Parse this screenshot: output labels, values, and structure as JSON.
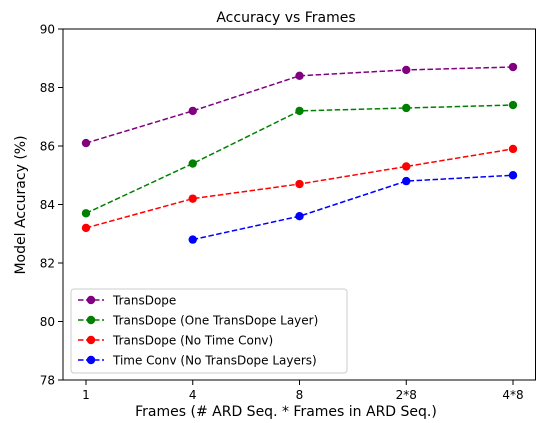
{
  "chart_data": {
    "type": "line",
    "title": "Accuracy vs Frames",
    "xlabel": "Frames (# ARD Seq. * Frames in ARD Seq.)",
    "ylabel": "Model Accuracy (%)",
    "categories": [
      "1",
      "4",
      "8",
      "2*8",
      "4*8"
    ],
    "ylim": [
      78,
      90
    ],
    "yticks": [
      78,
      80,
      82,
      84,
      86,
      88,
      90
    ],
    "grid": false,
    "legend_position": "lower-left",
    "series": [
      {
        "name": "TransDope",
        "color": "#800080",
        "values": [
          86.1,
          87.2,
          88.4,
          88.6,
          88.7
        ]
      },
      {
        "name": "TransDope (One TransDope Layer)",
        "color": "#008000",
        "values": [
          83.7,
          85.4,
          87.2,
          87.3,
          87.4
        ]
      },
      {
        "name": "TransDope (No Time Conv)",
        "color": "#ff0000",
        "values": [
          83.2,
          84.2,
          84.7,
          85.3,
          85.9
        ]
      },
      {
        "name": "Time Conv (No TransDope Layers)",
        "color": "#0000ff",
        "values": [
          null,
          82.8,
          83.6,
          84.8,
          85.0
        ]
      }
    ]
  }
}
